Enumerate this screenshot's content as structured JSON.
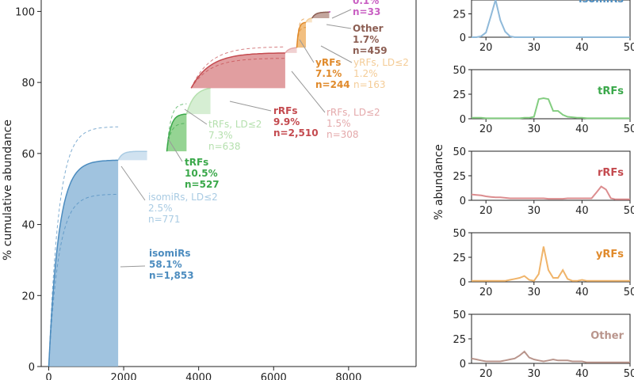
{
  "colors": {
    "isomiRs": "#4c8cbf",
    "isomiRs_fill": "#8fb9d9",
    "isomiRs_ld": "#a9cbe3",
    "tRFs": "#3aa84a",
    "tRFs_fill": "#83cd80",
    "tRFs_ld": "#b5e0ae",
    "rRFs": "#c44a4f",
    "rRFs_fill": "#dc8d8f",
    "rRFs_ld": "#e4a9ab",
    "yRFs": "#e08a2b",
    "yRFs_fill": "#f0b46a",
    "yRFs_ld": "#f4cc97",
    "other": "#8c5e53",
    "other_fill": "#b9958c",
    "top": "#c95fc3"
  },
  "chart_data": [
    {
      "type": "area",
      "title": "",
      "xlabel": "",
      "ylabel": "% cumulative abundance",
      "xlim": [
        -200,
        9800
      ],
      "ylim": [
        0,
        105
      ],
      "xticks": [
        0,
        2000,
        4000,
        6000,
        8000
      ],
      "xtick_labels": [
        "0",
        "2000",
        "4000",
        "6000",
        "8000"
      ],
      "yticks": [
        0,
        20,
        40,
        60,
        80,
        100
      ],
      "ytick_labels": [
        "0",
        "20",
        "40",
        "60",
        "80",
        "100"
      ],
      "segments": [
        {
          "key": "isomiRs",
          "name": "isomiRs",
          "x_start": 0,
          "x_end": 1853,
          "y_start": 0,
          "y_end": 58.1,
          "style": "main",
          "lines": [
            "isomiRs",
            "58.1%",
            "n=1,853"
          ],
          "dashed_hi": 67.5,
          "dashed_lo": 48.5
        },
        {
          "key": "isomiRs",
          "name": "isomiRs, LD≤2",
          "x_start": 1853,
          "x_end": 2624,
          "y_start": 58.1,
          "y_end": 60.6,
          "style": "ld",
          "lines": [
            "isomiRs, LD≤2",
            "2.5%",
            "n=771"
          ]
        },
        {
          "key": "tRFs",
          "name": "tRFs",
          "x_start": 3150,
          "x_end": 3677,
          "y_start": 60.6,
          "y_end": 71.1,
          "style": "main",
          "lines": [
            "tRFs",
            "10.5%",
            "n=527"
          ],
          "dashed_hi": 74.0,
          "dashed_lo": 68.5
        },
        {
          "key": "tRFs",
          "name": "tRFs, LD≤2",
          "x_start": 3677,
          "x_end": 4315,
          "y_start": 71.1,
          "y_end": 78.4,
          "style": "ld",
          "lines": [
            "tRFs, LD≤2",
            "7.3%",
            "n=638"
          ]
        },
        {
          "key": "rRFs",
          "name": "rRFs",
          "x_start": 3800,
          "x_end": 6310,
          "y_start": 78.4,
          "y_end": 88.3,
          "style": "main",
          "lines": [
            "rRFs",
            "9.9%",
            "n=2,510"
          ],
          "dashed_hi": 90.0,
          "dashed_lo": 86.8
        },
        {
          "key": "rRFs",
          "name": "rRFs, LD≤2",
          "x_start": 6310,
          "x_end": 6618,
          "y_start": 88.3,
          "y_end": 89.8,
          "style": "ld",
          "lines": [
            "rRFs, LD≤2",
            "1.5%",
            "n=308"
          ]
        },
        {
          "key": "yRFs",
          "name": "yRFs",
          "x_start": 6618,
          "x_end": 6862,
          "y_start": 89.8,
          "y_end": 96.9,
          "style": "main",
          "lines": [
            "yRFs",
            "7.1%",
            "n=244"
          ],
          "dashed_hi": 98.0,
          "dashed_lo": 95.5
        },
        {
          "key": "yRFs",
          "name": "yRFs, LD≤2",
          "x_start": 6862,
          "x_end": 7025,
          "y_start": 96.9,
          "y_end": 98.1,
          "style": "ld",
          "lines": [
            "yRFs, LD≤2",
            "1.2%",
            "n=163"
          ]
        },
        {
          "key": "other",
          "name": "Other",
          "x_start": 7025,
          "x_end": 7484,
          "y_start": 98.1,
          "y_end": 99.8,
          "style": "main",
          "lines": [
            "Other",
            "1.7%",
            "n=459"
          ]
        },
        {
          "key": "top",
          "name": "unlabeled",
          "x_start": 7484,
          "x_end": 7517,
          "y_start": 99.8,
          "y_end": 99.9,
          "style": "main",
          "lines": [
            "0.1%",
            "n=33"
          ]
        }
      ]
    },
    {
      "type": "line",
      "ylabel": "% abundance",
      "xlim": [
        17,
        50
      ],
      "xticks": [
        20,
        30,
        40,
        50
      ],
      "xtick_labels": [
        "20",
        "30",
        "40",
        "50"
      ],
      "panels": [
        {
          "key": "isomiRs",
          "name": "isomiRs",
          "ylim": [
            0,
            50
          ],
          "yticks": [
            0,
            25,
            50
          ],
          "ytick_labels": [
            "0",
            "25",
            "50"
          ],
          "x": [
            17,
            18,
            19,
            20,
            21,
            22,
            23,
            24,
            25,
            26,
            27,
            28,
            29,
            30,
            31,
            32,
            33,
            34,
            35,
            36,
            37,
            38,
            39,
            40,
            41,
            42,
            43,
            44,
            45,
            46,
            47,
            48,
            49,
            50
          ],
          "y": [
            0,
            0,
            1,
            5,
            22,
            40,
            18,
            6,
            1,
            0,
            0,
            0,
            0,
            0,
            0,
            0,
            0,
            0,
            0,
            0,
            0,
            0,
            0,
            0,
            0,
            0,
            0,
            0,
            0,
            0,
            0,
            0,
            0,
            0
          ]
        },
        {
          "key": "tRFs",
          "name": "tRFs",
          "ylim": [
            0,
            50
          ],
          "yticks": [
            0,
            25,
            50
          ],
          "ytick_labels": [
            "0",
            "25",
            "50"
          ],
          "x": [
            17,
            18,
            19,
            20,
            21,
            22,
            23,
            24,
            25,
            26,
            27,
            28,
            29,
            30,
            31,
            32,
            33,
            34,
            35,
            36,
            37,
            38,
            39,
            40,
            41,
            42,
            43,
            44,
            45,
            46,
            47,
            48,
            49,
            50
          ],
          "y": [
            1,
            1,
            1,
            0.5,
            0.5,
            0.5,
            0.5,
            0.5,
            0.5,
            0.5,
            0.5,
            1,
            1,
            2,
            20,
            21,
            20,
            8,
            8,
            4,
            2,
            1.5,
            1,
            1,
            0.5,
            0.5,
            0.5,
            0.5,
            0.5,
            0.5,
            0.5,
            0.5,
            0.5,
            0.5
          ]
        },
        {
          "key": "rRFs",
          "name": "rRFs",
          "ylim": [
            0,
            50
          ],
          "yticks": [
            0,
            25,
            50
          ],
          "ytick_labels": [
            "0",
            "25",
            "50"
          ],
          "x": [
            17,
            18,
            19,
            20,
            21,
            22,
            23,
            24,
            25,
            26,
            27,
            28,
            29,
            30,
            31,
            32,
            33,
            34,
            35,
            36,
            37,
            38,
            39,
            40,
            41,
            42,
            43,
            44,
            45,
            46,
            47,
            48,
            49,
            50
          ],
          "y": [
            6,
            5.5,
            5,
            4,
            3.5,
            3,
            3,
            2.5,
            2,
            2,
            2,
            2,
            2,
            2,
            2,
            2,
            1.5,
            1.5,
            1.5,
            1.5,
            2,
            2,
            2,
            2,
            2,
            2,
            8,
            14,
            11,
            2,
            1,
            1,
            1,
            1
          ]
        },
        {
          "key": "yRFs",
          "name": "yRFs",
          "ylim": [
            0,
            50
          ],
          "yticks": [
            0,
            25,
            50
          ],
          "ytick_labels": [
            "0",
            "25",
            "50"
          ],
          "x": [
            17,
            18,
            19,
            20,
            21,
            22,
            23,
            24,
            25,
            26,
            27,
            28,
            29,
            30,
            31,
            32,
            33,
            34,
            35,
            36,
            37,
            38,
            39,
            40,
            41,
            42,
            43,
            44,
            45,
            46,
            47,
            48,
            49,
            50
          ],
          "y": [
            1,
            1,
            1,
            1,
            1,
            1,
            1,
            1,
            2,
            3,
            4,
            6,
            2,
            1,
            8,
            36,
            12,
            4,
            4,
            12,
            3,
            1,
            1,
            2,
            1,
            1,
            1,
            1,
            1,
            1,
            1,
            1,
            1,
            1
          ]
        },
        {
          "key": "other",
          "name": "Other",
          "ylim": [
            0,
            50
          ],
          "yticks": [
            0,
            25,
            50
          ],
          "ytick_labels": [
            "0",
            "25",
            "50"
          ],
          "x": [
            17,
            18,
            19,
            20,
            21,
            22,
            23,
            24,
            25,
            26,
            27,
            28,
            29,
            30,
            31,
            32,
            33,
            34,
            35,
            36,
            37,
            38,
            39,
            40,
            41,
            42,
            43,
            44,
            45,
            46,
            47,
            48,
            49,
            50
          ],
          "y": [
            5,
            4,
            3,
            2,
            2,
            2,
            2,
            3,
            4,
            5,
            8,
            12,
            6,
            4,
            3,
            2,
            3,
            4,
            3,
            3,
            3,
            2,
            2,
            2,
            1,
            1,
            1,
            1,
            1,
            1,
            1,
            1,
            1,
            1
          ]
        }
      ]
    }
  ]
}
